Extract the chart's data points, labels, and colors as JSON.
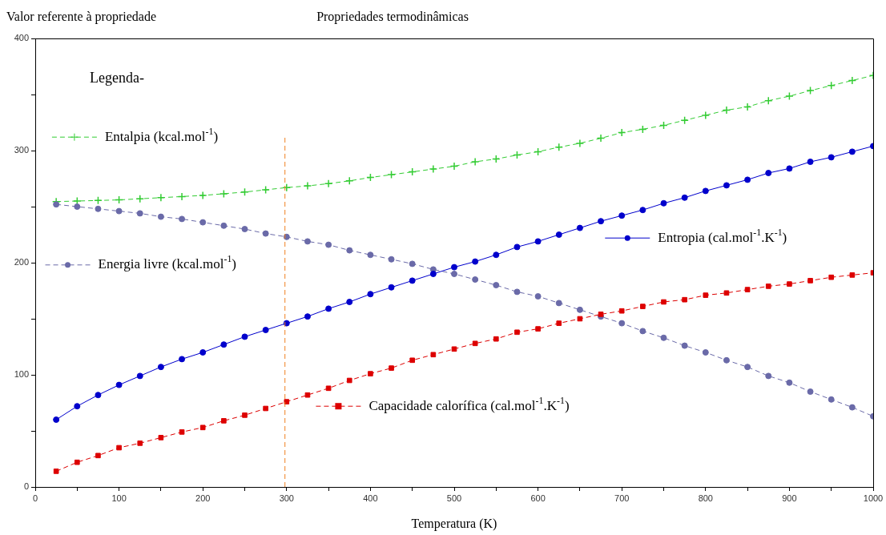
{
  "chart_data": {
    "type": "line",
    "title": "Propriedades termodinâmicas",
    "ylabel": "Valor referente à propriedade",
    "xlabel": "Temperatura (K)",
    "legend_title": "Legenda-",
    "legend": "left",
    "grid": false,
    "x": [
      25,
      50,
      75,
      100,
      125,
      150,
      175,
      200,
      225,
      250,
      275,
      300,
      325,
      350,
      375,
      400,
      425,
      450,
      475,
      500,
      525,
      550,
      575,
      600,
      625,
      650,
      675,
      700,
      725,
      750,
      775,
      800,
      825,
      850,
      875,
      900,
      925,
      950,
      975,
      1000
    ],
    "xlim": [
      0,
      1000
    ],
    "xticks": [
      0,
      {
        "value": 50,
        "label": null
      },
      100,
      {
        "value": 150,
        "label": null
      },
      200,
      {
        "value": 250,
        "label": null
      },
      300,
      {
        "value": 350,
        "label": null
      },
      400,
      {
        "value": 450,
        "label": null
      },
      500,
      {
        "value": 550,
        "label": null
      },
      600,
      {
        "value": 650,
        "label": null
      },
      700,
      {
        "value": 750,
        "label": null
      },
      800,
      {
        "value": 850,
        "label": null
      },
      900,
      {
        "value": 950,
        "label": null
      },
      1000
    ],
    "ylim": [
      0,
      400
    ],
    "yticks": [
      0,
      {
        "value": 50,
        "label": null
      },
      100,
      {
        "value": 150,
        "label": null
      },
      200,
      {
        "value": 250,
        "label": null
      },
      300,
      {
        "value": 350,
        "label": null
      },
      400
    ],
    "series": [
      {
        "name": "Entalpia (kcal.mol$^{-1}$)",
        "color": "#33cc33",
        "marker": "cross",
        "line_style": "dashed",
        "values": [
          254.5,
          255,
          255.5,
          256,
          257,
          258,
          259,
          260,
          261.5,
          263,
          265,
          267,
          268.5,
          270.5,
          273,
          276,
          278.5,
          281,
          283.5,
          286,
          290,
          292.5,
          296,
          299,
          303,
          306.5,
          311,
          316,
          319,
          322.5,
          327,
          331.5,
          336,
          339,
          344.5,
          348.5,
          353.5,
          358,
          362.5,
          367
        ]
      },
      {
        "name": "Energia livre (kcal.mol$^{-1}$)",
        "color": "#6a6aa8",
        "marker": "circle",
        "line_style": "dashed",
        "values": [
          252,
          250,
          248,
          246,
          244,
          241,
          239,
          236,
          233,
          230,
          226,
          223,
          219,
          216,
          211,
          207,
          203,
          199,
          194,
          190,
          185,
          180,
          174,
          170,
          164,
          158,
          152,
          146,
          139,
          133,
          126,
          120,
          113,
          107,
          99,
          93,
          85,
          78,
          71,
          63
        ]
      },
      {
        "name": "Entropia (cal.mol$^{-1}$.K$^{-1}$)",
        "color": "#0000cc",
        "marker": "circle",
        "line_style": "solid",
        "values": [
          60,
          72,
          82,
          91,
          99,
          107,
          114,
          120,
          127,
          134,
          140,
          146,
          152,
          159,
          165,
          172,
          178,
          184,
          190,
          196,
          201,
          207,
          214,
          219,
          225,
          231,
          237,
          242,
          247,
          253,
          258,
          264,
          269,
          274,
          280,
          284,
          290,
          294,
          299,
          304
        ]
      },
      {
        "name": "Capacidade calorífica (cal.mol$^{-1}$.K$^{-1}$)",
        "color": "#dd0000",
        "marker": "square",
        "line_style": "dashed",
        "values": [
          14,
          22,
          28,
          35,
          39,
          44,
          49,
          53,
          59,
          64,
          70,
          76,
          82,
          88,
          95,
          101,
          106,
          113,
          118,
          123,
          128,
          132,
          138,
          141,
          146,
          150,
          154,
          157,
          161,
          165,
          167,
          171,
          173,
          176,
          179,
          181,
          184,
          187,
          189,
          191
        ]
      }
    ],
    "ref_lines": [
      {
        "axis": "x",
        "value": 298,
        "color": "#f08020",
        "line_style": "dashed"
      }
    ]
  }
}
